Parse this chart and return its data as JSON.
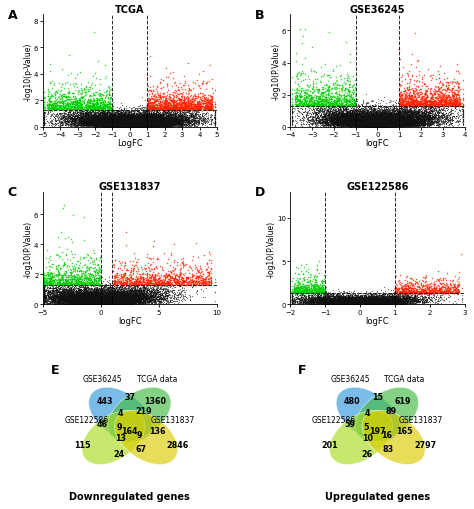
{
  "panels": [
    {
      "label": "A",
      "title": "TCGA",
      "xlabel": "LogFC",
      "ylabel": "-log10(p-Value)",
      "xlim": [
        -5,
        5
      ],
      "ylim": [
        0,
        8.5
      ],
      "xticks": [
        -5,
        -4,
        -3,
        -2,
        -1,
        0,
        1,
        2,
        3,
        4,
        5
      ],
      "yticks": [
        0,
        2,
        4,
        6,
        8
      ],
      "vline1": -1,
      "vline2": 1,
      "hline": 1.3,
      "n_total": 15000,
      "seed": 42
    },
    {
      "label": "B",
      "title": "GSE36245",
      "xlabel": "logFC",
      "ylabel": "-log10(P.Value)",
      "xlim": [
        -4,
        4
      ],
      "ylim": [
        0,
        7.0
      ],
      "xticks": [
        -4,
        -3,
        -2,
        -1,
        0,
        1,
        2,
        3,
        4
      ],
      "yticks": [
        0,
        2,
        4,
        6
      ],
      "vline1": -1,
      "vline2": 1,
      "hline": 1.3,
      "n_total": 14000,
      "seed": 123
    },
    {
      "label": "C",
      "title": "GSE131837",
      "xlabel": "logFC",
      "ylabel": "-log10(P.Value)",
      "xlim": [
        -5,
        10
      ],
      "ylim": [
        0,
        7.5
      ],
      "xticks": [
        -5,
        0,
        5,
        10
      ],
      "yticks": [
        0,
        2,
        4,
        6
      ],
      "vline1": 0,
      "vline2": 1,
      "hline": 1.3,
      "n_total": 12000,
      "seed": 77
    },
    {
      "label": "D",
      "title": "GSE122586",
      "xlabel": "logFC",
      "ylabel": "-log10(P.Value)",
      "xlim": [
        -2,
        3
      ],
      "ylim": [
        0,
        13
      ],
      "xticks": [
        -2,
        -1,
        0,
        1,
        2,
        3
      ],
      "yticks": [
        0,
        5,
        10
      ],
      "vline1": -1,
      "vline2": 1,
      "hline": 1.3,
      "n_total": 8000,
      "seed": 55
    }
  ],
  "venn_E": {
    "label": "E",
    "title": "Downregulated genes",
    "sets": [
      "GSE36245",
      "TCGA data",
      "GSE122586",
      "GSE131837"
    ],
    "numbers": {
      "only_A": "443",
      "only_B": "1360",
      "only_C": "115",
      "only_D": "2846",
      "AB": "37",
      "AC": "46",
      "AD": "219",
      "BC": "9",
      "BD": "136",
      "CD": "24",
      "ABC": "4",
      "ABD": "9",
      "ACD": "13",
      "BCD": "67",
      "ABCD": "164"
    }
  },
  "venn_F": {
    "label": "F",
    "title": "Upregulated genes",
    "sets": [
      "GSE36245",
      "TCGA data",
      "GSE122586",
      "GSE131837"
    ],
    "numbers": {
      "only_A": "480",
      "only_B": "619",
      "only_C": "201",
      "only_D": "2797",
      "AB": "15",
      "AC": "59",
      "AD": "89",
      "BC": "5",
      "BD": "165",
      "CD": "26",
      "ABC": "4",
      "ABD": "16",
      "ACD": "10",
      "BCD": "83",
      "ABCD": "197"
    }
  },
  "colors": {
    "red": "#FF2200",
    "green": "#00CC00",
    "black": "#111111",
    "venn_blue": "#3399DD",
    "venn_green": "#44BB44",
    "venn_lime": "#AADD22",
    "venn_yellow": "#DDCC00"
  }
}
